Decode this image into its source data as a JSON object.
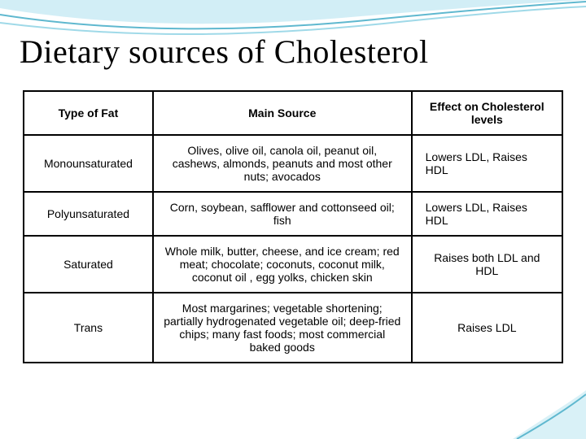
{
  "title": "Dietary sources of Cholesterol",
  "swoosh_color": "#8fd3e8",
  "corner_color": "#8fd3e8",
  "table": {
    "columns": [
      "Type of Fat",
      "Main Source",
      "Effect on Cholesterol levels"
    ],
    "rows": [
      {
        "type": "Monounsaturated",
        "source": "Olives, olive oil, canola oil, peanut oil, cashews, almonds, peanuts and most other nuts; avocados",
        "effect": "Lowers LDL, Raises HDL",
        "effect_align": "left"
      },
      {
        "type": "Polyunsaturated",
        "source": "Corn, soybean, safflower and cottonseed oil; fish",
        "effect": "Lowers LDL, Raises HDL",
        "effect_align": "left"
      },
      {
        "type": "Saturated",
        "source": "Whole milk, butter, cheese, and ice cream; red meat; chocolate; coconuts, coconut milk, coconut oil , egg yolks, chicken skin",
        "effect": "Raises both LDL and HDL",
        "effect_align": "center"
      },
      {
        "type": "Trans",
        "source": "Most margarines; vegetable shortening; partially hydrogenated vegetable oil; deep-fried chips; many fast foods; most commercial baked goods",
        "effect": "Raises LDL",
        "effect_align": "center"
      }
    ],
    "border_color": "#000000",
    "header_fontsize": 14,
    "cell_fontsize": 14,
    "col_widths_pct": [
      24,
      48,
      28
    ]
  }
}
